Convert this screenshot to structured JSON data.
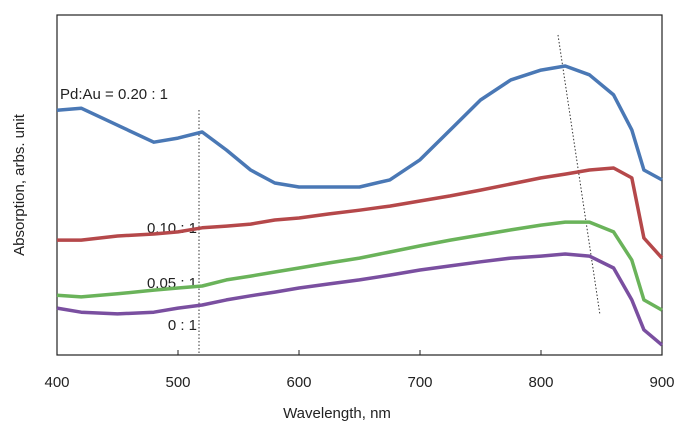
{
  "chart_data": {
    "type": "line",
    "xlabel": "Wavelength, nm",
    "ylabel": "Absorption, arbs. unit",
    "x": [
      400,
      420,
      450,
      480,
      500,
      520,
      540,
      560,
      580,
      600,
      625,
      650,
      675,
      700,
      725,
      750,
      775,
      800,
      820,
      840,
      860,
      875,
      885,
      900
    ],
    "series": [
      {
        "name": "Pd:Au = 0.20 : 1",
        "color": "#4a78b5",
        "values": [
          72,
          72.6,
          67.6,
          62.6,
          63.8,
          65.6,
          60.3,
          54.4,
          50.6,
          49.4,
          49.4,
          49.4,
          51.5,
          57.4,
          66.2,
          75,
          80.9,
          83.8,
          85,
          82.4,
          76.5,
          66.2,
          54.4,
          51.5
        ]
      },
      {
        "name": "0.10 : 1",
        "color": "#b5484a",
        "values": [
          33.8,
          33.8,
          35,
          35.6,
          36.2,
          37.4,
          37.9,
          38.5,
          39.7,
          40.3,
          41.5,
          42.6,
          43.8,
          45.3,
          46.8,
          48.5,
          50.3,
          52.1,
          53.2,
          54.4,
          55,
          52.1,
          34.4,
          28.5
        ]
      },
      {
        "name": "0.05 : 1",
        "color": "#6ab35a",
        "values": [
          17.6,
          17.1,
          18,
          19.1,
          19.7,
          20.3,
          22.1,
          23.2,
          24.4,
          25.6,
          27.1,
          28.5,
          30.3,
          32.1,
          33.8,
          35.3,
          36.8,
          38.2,
          39.1,
          39.1,
          36.2,
          27.9,
          16.2,
          13.2
        ]
      },
      {
        "name": "0 : 1",
        "color": "#7a4fa0",
        "values": [
          13.8,
          12.6,
          12.1,
          12.6,
          13.8,
          14.7,
          16.2,
          17.4,
          18.5,
          19.7,
          20.9,
          22.1,
          23.5,
          25,
          26.2,
          27.4,
          28.5,
          29.1,
          29.7,
          29.1,
          25.6,
          16.2,
          7.4,
          2.9
        ]
      }
    ],
    "xlim": [
      400,
      900
    ],
    "xticks": [
      400,
      500,
      600,
      700,
      800,
      900
    ],
    "ylim": [
      0,
      100
    ]
  }
}
